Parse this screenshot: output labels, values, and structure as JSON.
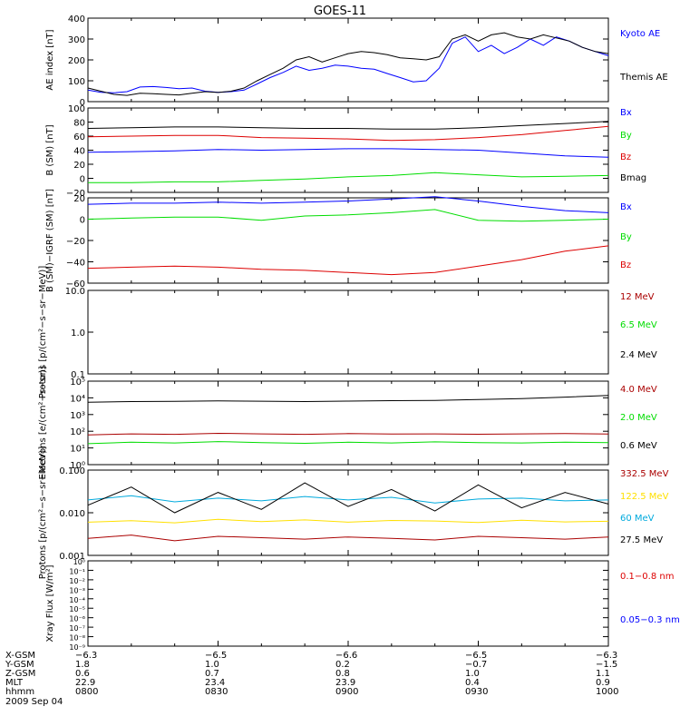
{
  "title": "GOES-11",
  "date_label": "2009 Sep 04",
  "chart_data": [
    {
      "type": "line",
      "ylabel": "AE index [nT]",
      "ylim": [
        0,
        400
      ],
      "yticks": [
        "0",
        "100",
        "200",
        "300",
        "400"
      ],
      "x": [
        0,
        3,
        6,
        9,
        12,
        15,
        18,
        21,
        24,
        27,
        30,
        33,
        36,
        39,
        42,
        45,
        48,
        51,
        54,
        57,
        60,
        63,
        66,
        69,
        72,
        75,
        78,
        81,
        84,
        87,
        90,
        93,
        96,
        99,
        102,
        105,
        108,
        111,
        114,
        117,
        120
      ],
      "series": [
        {
          "name": "Kyoto AE",
          "color": "#0000ff",
          "values": [
            55,
            45,
            42,
            48,
            70,
            72,
            68,
            62,
            65,
            50,
            45,
            48,
            55,
            85,
            115,
            140,
            170,
            150,
            160,
            175,
            170,
            160,
            155,
            135,
            115,
            95,
            100,
            160,
            280,
            310,
            240,
            270,
            230,
            260,
            300,
            270,
            310,
            290,
            260,
            240,
            220
          ]
        },
        {
          "name": "Themis AE",
          "color": "#000000",
          "values": [
            65,
            50,
            35,
            30,
            40,
            38,
            35,
            32,
            40,
            48,
            44,
            50,
            65,
            100,
            130,
            160,
            200,
            215,
            190,
            210,
            230,
            240,
            235,
            225,
            210,
            205,
            200,
            215,
            300,
            320,
            290,
            320,
            330,
            310,
            300,
            320,
            305,
            290,
            260,
            240,
            230
          ]
        }
      ]
    },
    {
      "type": "line",
      "ylabel": "B (SM) [nT]",
      "ylim": [
        -20,
        100
      ],
      "yticks": [
        "−20",
        "0",
        "20",
        "40",
        "60",
        "80",
        "100"
      ],
      "x": [
        0,
        10,
        20,
        30,
        40,
        50,
        60,
        70,
        80,
        90,
        100,
        110,
        120
      ],
      "series": [
        {
          "name": "Bx",
          "color": "#0000ff",
          "values": [
            37,
            38,
            39,
            41,
            40,
            41,
            42,
            42,
            41,
            40,
            36,
            32,
            30
          ]
        },
        {
          "name": "By",
          "color": "#00dd00",
          "values": [
            -6,
            -6,
            -5,
            -5,
            -3,
            -1,
            2,
            4,
            8,
            5,
            2,
            3,
            4
          ]
        },
        {
          "name": "Bz",
          "color": "#dd0000",
          "values": [
            59,
            60,
            61,
            61,
            58,
            57,
            56,
            54,
            55,
            58,
            62,
            68,
            74
          ]
        },
        {
          "name": "Bmag",
          "color": "#000000",
          "values": [
            71,
            72,
            73,
            73,
            72,
            71,
            71,
            70,
            70,
            72,
            75,
            78,
            81
          ]
        }
      ]
    },
    {
      "type": "line",
      "ylabel": "B (SM)−IGRF (SM) [nT]",
      "ylim": [
        -60,
        20
      ],
      "yticks": [
        "−60",
        "−40",
        "−20",
        "0",
        "20"
      ],
      "x": [
        0,
        10,
        20,
        30,
        40,
        50,
        60,
        70,
        80,
        90,
        100,
        110,
        120
      ],
      "series": [
        {
          "name": "Bx",
          "color": "#0000ff",
          "values": [
            14,
            15,
            15,
            16,
            15,
            16,
            17,
            19,
            21,
            17,
            12,
            8,
            6
          ]
        },
        {
          "name": "By",
          "color": "#00dd00",
          "values": [
            0,
            1,
            2,
            2,
            -1,
            3,
            4,
            6,
            9,
            -1,
            -2,
            -1,
            0
          ]
        },
        {
          "name": "Bz",
          "color": "#dd0000",
          "values": [
            -46,
            -45,
            -44,
            -45,
            -47,
            -48,
            -50,
            -52,
            -50,
            -44,
            -38,
            -30,
            -25
          ]
        }
      ]
    },
    {
      "type": "scatter",
      "ylabel": "Protons [p/(cm²−s−sr−MeV)]",
      "scale": "log",
      "ylim": [
        0.1,
        10
      ],
      "yticks": [
        "0.1",
        "1.0",
        "10.0"
      ],
      "series": [
        {
          "name": "12 MeV",
          "color": "#aa0000"
        },
        {
          "name": "6.5 MeV",
          "color": "#00dd00"
        },
        {
          "name": "2.4 MeV",
          "color": "#000000"
        }
      ]
    },
    {
      "type": "line",
      "ylabel": "Electrons [e/(cm²−s−sr)]",
      "scale": "log",
      "ylim": [
        1,
        100000
      ],
      "yticks": [
        "10⁰",
        "10¹",
        "10²",
        "10³",
        "10⁴",
        "10⁵"
      ],
      "x": [
        0,
        10,
        20,
        30,
        40,
        50,
        60,
        70,
        80,
        90,
        100,
        110,
        120
      ],
      "series": [
        {
          "name": "4.0 MeV",
          "color": "#aa0000",
          "values": [
            60,
            70,
            65,
            75,
            70,
            65,
            72,
            68,
            70,
            66,
            70,
            72,
            68
          ]
        },
        {
          "name": "2.0 MeV",
          "color": "#00dd00",
          "values": [
            18,
            22,
            20,
            24,
            21,
            19,
            22,
            20,
            23,
            21,
            20,
            22,
            21
          ]
        },
        {
          "name": "0.6 MeV",
          "color": "#000000",
          "values": [
            5500,
            6000,
            6200,
            6500,
            6300,
            6000,
            6400,
            6800,
            7000,
            8000,
            9000,
            11000,
            14000
          ]
        }
      ]
    },
    {
      "type": "line",
      "ylabel": "Protons [p/(cm²−s−sr−MeV)]",
      "scale": "log",
      "ylim": [
        0.001,
        0.1
      ],
      "yticks": [
        "0.001",
        "0.010",
        "0.100"
      ],
      "x": [
        0,
        10,
        20,
        30,
        40,
        50,
        60,
        70,
        80,
        90,
        100,
        110,
        120
      ],
      "series": [
        {
          "name": "332.5 MeV",
          "color": "#aa0000",
          "values": [
            0.0025,
            0.003,
            0.0022,
            0.0028,
            0.0026,
            0.0024,
            0.0027,
            0.0025,
            0.0023,
            0.0028,
            0.0026,
            0.0024,
            0.0027
          ]
        },
        {
          "name": "122.5 MeV",
          "color": "#ffe000",
          "values": [
            0.006,
            0.0065,
            0.0058,
            0.007,
            0.0062,
            0.0068,
            0.006,
            0.0066,
            0.0064,
            0.0059,
            0.0067,
            0.0061,
            0.0063
          ]
        },
        {
          "name": "60 MeV",
          "color": "#00aadd",
          "values": [
            0.02,
            0.025,
            0.018,
            0.022,
            0.019,
            0.024,
            0.02,
            0.023,
            0.017,
            0.021,
            0.022,
            0.019,
            0.02
          ]
        },
        {
          "name": "27.5 MeV",
          "color": "#000000",
          "values": [
            0.015,
            0.04,
            0.01,
            0.03,
            0.012,
            0.05,
            0.014,
            0.035,
            0.011,
            0.045,
            0.013,
            0.03,
            0.016
          ]
        }
      ]
    },
    {
      "type": "line",
      "ylabel": "Xray Flux [W/m²]",
      "scale": "log",
      "ylim": [
        1e-09,
        1
      ],
      "yticks": [
        "10⁻⁹",
        "10⁻⁸",
        "10⁻⁷",
        "10⁻⁶",
        "10⁻⁵",
        "10⁻⁴",
        "10⁻³",
        "10⁻²",
        "10⁻¹",
        "10⁰"
      ],
      "series": [
        {
          "name": "0.1−0.8 nm",
          "color": "#dd0000"
        },
        {
          "name": "0.05−0.3 nm",
          "color": "#0000ff"
        }
      ]
    }
  ],
  "bottom_axis": {
    "row_labels": [
      "X-GSM",
      "Y-GSM",
      "Z-GSM",
      "MLT",
      "hhmm"
    ],
    "columns": [
      [
        "−6.3",
        "1.8",
        "0.6",
        "22.9",
        "0800"
      ],
      [
        "−6.5",
        "1.0",
        "0.7",
        "23.4",
        "0830"
      ],
      [
        "−6.6",
        "0.2",
        "0.8",
        "23.9",
        "0900"
      ],
      [
        "−6.5",
        "−0.7",
        "1.0",
        "0.4",
        "0930"
      ],
      [
        "−6.3",
        "−1.5",
        "1.1",
        "0.9",
        "1000"
      ]
    ]
  }
}
